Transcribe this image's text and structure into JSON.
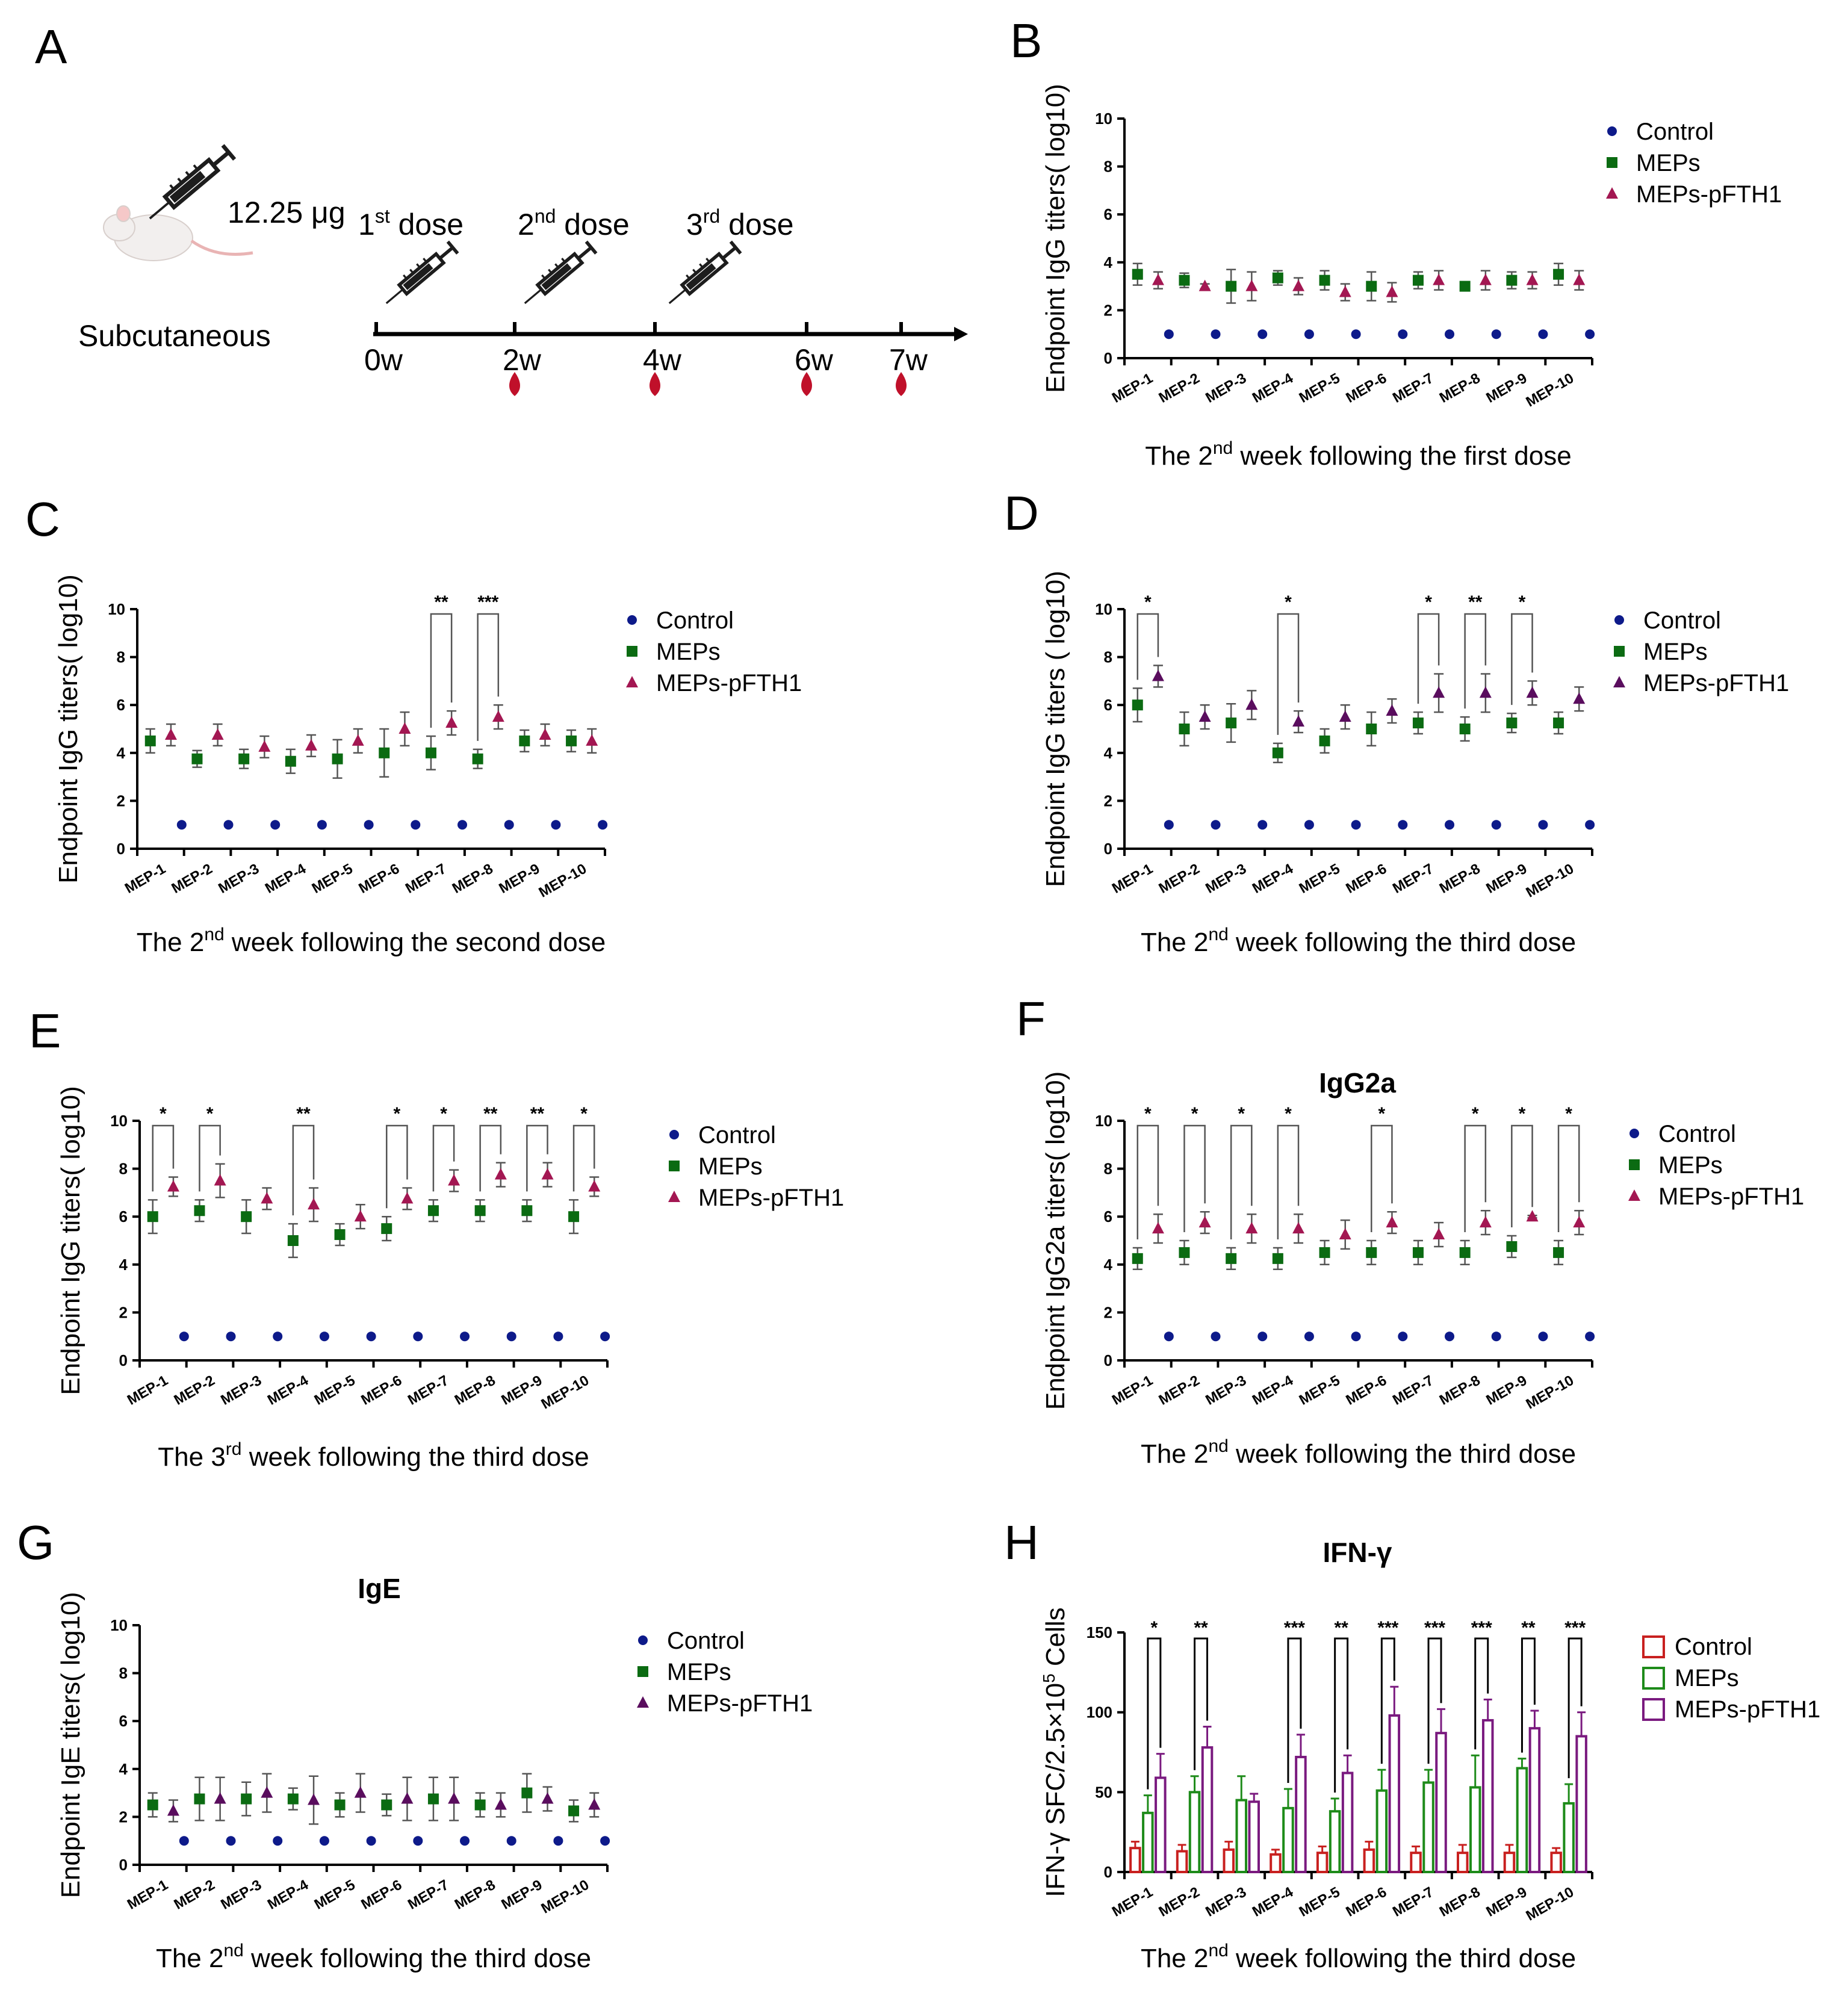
{
  "colors": {
    "control": "#0d1a8a",
    "meps": "#0b6b12",
    "pfth": "#a31752",
    "pfth_dark": "#5a0d5e",
    "bar_ctrl": "#c8201f",
    "bar_meps": "#1e8b1a",
    "bar_pfth": "#7a1a7f",
    "axis": "#000000",
    "drop": "#c0102a"
  },
  "panelA": {
    "label": "A",
    "dose_amount": "12.25 μg",
    "route": "Subcutaneous",
    "doses": [
      {
        "num": "1",
        "sup": "st",
        "word": " dose"
      },
      {
        "num": "2",
        "sup": "nd",
        "word": " dose"
      },
      {
        "num": "3",
        "sup": "rd",
        "word": " dose"
      }
    ],
    "weeks": [
      "0w",
      "2w",
      "4w",
      "6w",
      "7w"
    ]
  },
  "chart_data": [
    {
      "panel": "B",
      "type": "scatter",
      "title": "",
      "ylabel": "Endpoint IgG titers( log10)",
      "xtitle": {
        "pre": "The 2",
        "sup": "nd",
        "post": " week following the first dose"
      },
      "categories": [
        "MEP-1",
        "MEP-2",
        "MEP-3",
        "MEP-4",
        "MEP-5",
        "MEP-6",
        "MEP-7",
        "MEP-8",
        "MEP-9",
        "MEP-10"
      ],
      "ylim": [
        0,
        10
      ],
      "yticks": [
        "0",
        "2",
        "4",
        "6",
        "8",
        "10"
      ],
      "series": [
        {
          "name": "Control",
          "marker": "circle",
          "values": [
            1,
            1,
            1,
            1,
            1,
            1,
            1,
            1,
            1,
            1
          ],
          "errors": [
            0,
            0,
            0,
            0,
            0,
            0,
            0,
            0,
            0,
            0
          ]
        },
        {
          "name": "MEPs",
          "marker": "square",
          "values": [
            3.5,
            3.25,
            3.0,
            3.35,
            3.25,
            3.0,
            3.25,
            3.0,
            3.25,
            3.5
          ],
          "errors": [
            0.45,
            0.3,
            0.7,
            0.3,
            0.4,
            0.6,
            0.35,
            0.15,
            0.35,
            0.45
          ]
        },
        {
          "name": "MEPs-pFTH1",
          "marker": "triangle",
          "values": [
            3.25,
            3.0,
            3.0,
            3.0,
            2.75,
            2.75,
            3.25,
            3.25,
            3.25,
            3.25
          ],
          "errors": [
            0.35,
            0.1,
            0.6,
            0.35,
            0.35,
            0.4,
            0.4,
            0.4,
            0.35,
            0.4
          ]
        }
      ],
      "sig": []
    },
    {
      "panel": "C",
      "type": "scatter",
      "title": "",
      "ylabel": "Endpoint IgG titers( log10)",
      "xtitle": {
        "pre": "The 2",
        "sup": "nd",
        "post": " week following the second dose"
      },
      "categories": [
        "MEP-1",
        "MEP-2",
        "MEP-3",
        "MEP-4",
        "MEP-5",
        "MEP-6",
        "MEP-7",
        "MEP-8",
        "MEP-9",
        "MEP-10"
      ],
      "ylim": [
        0,
        10
      ],
      "yticks": [
        "0",
        "2",
        "4",
        "6",
        "8",
        "10"
      ],
      "series": [
        {
          "name": "Control",
          "marker": "circle",
          "values": [
            1,
            1,
            1,
            1,
            1,
            1,
            1,
            1,
            1,
            1
          ],
          "errors": [
            0,
            0,
            0,
            0,
            0,
            0,
            0,
            0,
            0,
            0
          ]
        },
        {
          "name": "MEPs",
          "marker": "square",
          "values": [
            4.5,
            3.75,
            3.75,
            3.65,
            3.75,
            4.0,
            4.0,
            3.75,
            4.5,
            4.5
          ],
          "errors": [
            0.5,
            0.35,
            0.4,
            0.5,
            0.8,
            1.0,
            0.7,
            0.4,
            0.45,
            0.45
          ]
        },
        {
          "name": "MEPs-pFTH1",
          "marker": "triangle",
          "values": [
            4.75,
            4.75,
            4.25,
            4.3,
            4.5,
            5.0,
            5.25,
            5.5,
            4.75,
            4.5
          ],
          "errors": [
            0.45,
            0.45,
            0.45,
            0.45,
            0.5,
            0.7,
            0.5,
            0.5,
            0.45,
            0.5
          ]
        }
      ],
      "sig": [
        {
          "index": 6,
          "label": "**"
        },
        {
          "index": 7,
          "label": "***"
        }
      ]
    },
    {
      "panel": "D",
      "type": "scatter",
      "title": "",
      "ylabel": "Endpoint IgG titers ( log10)",
      "xtitle": {
        "pre": "The 2",
        "sup": "nd",
        "post": " week following the third dose"
      },
      "categories": [
        "MEP-1",
        "MEP-2",
        "MEP-3",
        "MEP-4",
        "MEP-5",
        "MEP-6",
        "MEP-7",
        "MEP-8",
        "MEP-9",
        "MEP-10"
      ],
      "ylim": [
        0,
        10
      ],
      "yticks": [
        "0",
        "2",
        "4",
        "6",
        "8",
        "10"
      ],
      "series": [
        {
          "name": "Control",
          "marker": "circle",
          "values": [
            1,
            1,
            1,
            1,
            1,
            1,
            1,
            1,
            1,
            1
          ],
          "errors": [
            0,
            0,
            0,
            0,
            0,
            0,
            0,
            0,
            0,
            0
          ]
        },
        {
          "name": "MEPs",
          "marker": "square",
          "values": [
            6.0,
            5.0,
            5.25,
            4.0,
            4.5,
            5.0,
            5.25,
            5.0,
            5.25,
            5.25
          ],
          "errors": [
            0.7,
            0.7,
            0.8,
            0.4,
            0.5,
            0.7,
            0.45,
            0.5,
            0.4,
            0.45
          ]
        },
        {
          "name": "MEPs-pFTH1",
          "marker": "triangle",
          "values": [
            7.2,
            5.5,
            6.0,
            5.3,
            5.5,
            5.75,
            6.5,
            6.5,
            6.5,
            6.25
          ],
          "errors": [
            0.45,
            0.5,
            0.6,
            0.45,
            0.5,
            0.5,
            0.8,
            0.8,
            0.5,
            0.5
          ]
        }
      ],
      "sig": [
        {
          "index": 0,
          "label": "*"
        },
        {
          "index": 3,
          "label": "*"
        },
        {
          "index": 6,
          "label": "*"
        },
        {
          "index": 7,
          "label": "**"
        },
        {
          "index": 8,
          "label": "*"
        }
      ]
    },
    {
      "panel": "E",
      "type": "scatter",
      "title": "",
      "ylabel": "Endpoint IgG titers( log10)",
      "xtitle": {
        "pre": "The 3",
        "sup": "rd",
        "post": " week following the third dose"
      },
      "categories": [
        "MEP-1",
        "MEP-2",
        "MEP-3",
        "MEP-4",
        "MEP-5",
        "MEP-6",
        "MEP-7",
        "MEP-8",
        "MEP-9",
        "MEP-10"
      ],
      "ylim": [
        0,
        10
      ],
      "yticks": [
        "0",
        "2",
        "4",
        "6",
        "8",
        "10"
      ],
      "series": [
        {
          "name": "Control",
          "marker": "circle",
          "values": [
            1,
            1,
            1,
            1,
            1,
            1,
            1,
            1,
            1,
            1
          ],
          "errors": [
            0,
            0,
            0,
            0,
            0,
            0,
            0,
            0,
            0,
            0
          ]
        },
        {
          "name": "MEPs",
          "marker": "square",
          "values": [
            6.0,
            6.25,
            6.0,
            5.0,
            5.25,
            5.5,
            6.25,
            6.25,
            6.25,
            6.0
          ],
          "errors": [
            0.7,
            0.45,
            0.7,
            0.7,
            0.45,
            0.5,
            0.45,
            0.45,
            0.45,
            0.7
          ]
        },
        {
          "name": "MEPs-pFTH1",
          "marker": "triangle",
          "values": [
            7.25,
            7.5,
            6.75,
            6.5,
            6.0,
            6.75,
            7.5,
            7.75,
            7.75,
            7.25
          ],
          "errors": [
            0.4,
            0.7,
            0.45,
            0.7,
            0.5,
            0.45,
            0.45,
            0.5,
            0.5,
            0.4
          ]
        }
      ],
      "sig": [
        {
          "index": 0,
          "label": "*"
        },
        {
          "index": 1,
          "label": "*"
        },
        {
          "index": 3,
          "label": "**"
        },
        {
          "index": 5,
          "label": "*"
        },
        {
          "index": 6,
          "label": "*"
        },
        {
          "index": 7,
          "label": "**"
        },
        {
          "index": 8,
          "label": "**"
        },
        {
          "index": 9,
          "label": "*"
        }
      ]
    },
    {
      "panel": "F",
      "type": "scatter",
      "title": "IgG2a",
      "ylabel": "Endpoint IgG2a titers( log10)",
      "xtitle": {
        "pre": "The 2",
        "sup": "nd",
        "post": " week following the third dose"
      },
      "categories": [
        "MEP-1",
        "MEP-2",
        "MEP-3",
        "MEP-4",
        "MEP-5",
        "MEP-6",
        "MEP-7",
        "MEP-8",
        "MEP-9",
        "MEP-10"
      ],
      "ylim": [
        0,
        10
      ],
      "yticks": [
        "0",
        "2",
        "4",
        "6",
        "8",
        "10"
      ],
      "series": [
        {
          "name": "Control",
          "marker": "circle",
          "values": [
            1,
            1,
            1,
            1,
            1,
            1,
            1,
            1,
            1,
            1
          ],
          "errors": [
            0,
            0,
            0,
            0,
            0,
            0,
            0,
            0,
            0,
            0
          ]
        },
        {
          "name": "MEPs",
          "marker": "square",
          "values": [
            4.25,
            4.5,
            4.25,
            4.25,
            4.5,
            4.5,
            4.5,
            4.5,
            4.75,
            4.5
          ],
          "errors": [
            0.45,
            0.5,
            0.45,
            0.45,
            0.5,
            0.5,
            0.5,
            0.5,
            0.45,
            0.5
          ]
        },
        {
          "name": "MEPs-pFTH1",
          "marker": "triangle",
          "values": [
            5.5,
            5.75,
            5.5,
            5.5,
            5.25,
            5.75,
            5.25,
            5.75,
            6.0,
            5.75
          ],
          "errors": [
            0.6,
            0.45,
            0.6,
            0.6,
            0.6,
            0.45,
            0.5,
            0.5,
            0.05,
            0.5
          ]
        }
      ],
      "sig": [
        {
          "index": 0,
          "label": "*"
        },
        {
          "index": 1,
          "label": "*"
        },
        {
          "index": 2,
          "label": "*"
        },
        {
          "index": 3,
          "label": "*"
        },
        {
          "index": 5,
          "label": "*"
        },
        {
          "index": 7,
          "label": "*"
        },
        {
          "index": 8,
          "label": "*"
        },
        {
          "index": 9,
          "label": "*"
        }
      ]
    },
    {
      "panel": "G",
      "type": "scatter",
      "title": "IgE",
      "ylabel": "Endpoint IgE titers( log10)",
      "xtitle": {
        "pre": "The 2",
        "sup": "nd",
        "post": " week following the third dose"
      },
      "categories": [
        "MEP-1",
        "MEP-2",
        "MEP-3",
        "MEP-4",
        "MEP-5",
        "MEP-6",
        "MEP-7",
        "MEP-8",
        "MEP-9",
        "MEP-10"
      ],
      "ylim": [
        0,
        10
      ],
      "yticks": [
        "0",
        "2",
        "4",
        "6",
        "8",
        "10"
      ],
      "series": [
        {
          "name": "Control",
          "marker": "circle",
          "values": [
            1,
            1,
            1,
            1,
            1,
            1,
            1,
            1,
            1,
            1
          ],
          "errors": [
            0,
            0,
            0,
            0,
            0,
            0,
            0,
            0,
            0,
            0
          ]
        },
        {
          "name": "MEPs",
          "marker": "square",
          "values": [
            2.5,
            2.75,
            2.75,
            2.75,
            2.5,
            2.5,
            2.75,
            2.5,
            3.0,
            2.25
          ],
          "errors": [
            0.5,
            0.9,
            0.7,
            0.45,
            0.5,
            0.45,
            0.9,
            0.5,
            0.8,
            0.45
          ]
        },
        {
          "name": "MEPs-pFTH1",
          "marker": "triangle",
          "values": [
            2.25,
            2.75,
            3.0,
            2.7,
            3.0,
            2.75,
            2.75,
            2.5,
            2.75,
            2.5
          ],
          "errors": [
            0.45,
            0.9,
            0.8,
            1.0,
            0.8,
            0.9,
            0.9,
            0.5,
            0.5,
            0.5
          ]
        }
      ],
      "sig": []
    },
    {
      "panel": "H",
      "type": "bar",
      "title": "IFN-γ",
      "ylabel_pre": "IFN-γ SFC/2.5×10",
      "ylabel_sup": "5",
      "ylabel_post": " Cells",
      "xtitle": {
        "pre": "The 2",
        "sup": "nd",
        "post": " week following the third dose"
      },
      "categories": [
        "MEP-1",
        "MEP-2",
        "MEP-3",
        "MEP-4",
        "MEP-5",
        "MEP-6",
        "MEP-7",
        "MEP-8",
        "MEP-9",
        "MEP-10"
      ],
      "ylim": [
        0,
        150
      ],
      "yticks": [
        "0",
        "50",
        "100",
        "150"
      ],
      "series": [
        {
          "name": "Control",
          "values": [
            15,
            13,
            14,
            11,
            12,
            14,
            12,
            12,
            12,
            12
          ],
          "errors": [
            4,
            4,
            5,
            3,
            4,
            5,
            4,
            5,
            5,
            3
          ]
        },
        {
          "name": "MEPs",
          "values": [
            37,
            50,
            45,
            40,
            38,
            51,
            56,
            53,
            65,
            43
          ],
          "errors": [
            11,
            10,
            15,
            12,
            8,
            13,
            8,
            20,
            6,
            12
          ]
        },
        {
          "name": "MEPs-pFTH1",
          "values": [
            59,
            78,
            44,
            72,
            62,
            98,
            87,
            95,
            90,
            85
          ],
          "errors": [
            15,
            13,
            5,
            14,
            11,
            18,
            15,
            13,
            11,
            15
          ]
        }
      ],
      "sig": [
        {
          "index": 0,
          "label": "*"
        },
        {
          "index": 1,
          "label": "**"
        },
        {
          "index": 3,
          "label": "***"
        },
        {
          "index": 4,
          "label": "**"
        },
        {
          "index": 5,
          "label": "***"
        },
        {
          "index": 6,
          "label": "***"
        },
        {
          "index": 7,
          "label": "***"
        },
        {
          "index": 8,
          "label": "**"
        },
        {
          "index": 9,
          "label": "***"
        }
      ]
    }
  ]
}
